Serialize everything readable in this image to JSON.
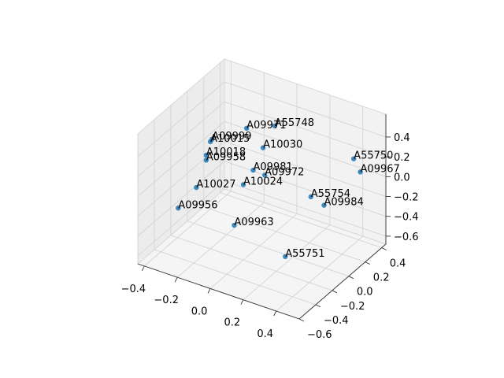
{
  "chart_data": {
    "type": "scatter3d",
    "color": "#1f77b4",
    "grid": true,
    "xlim": [
      -0.44,
      0.54
    ],
    "ylim": [
      -0.6,
      0.45
    ],
    "zlim": [
      -0.68,
      0.63
    ],
    "xticks": [
      {
        "value": -0.4,
        "label": "−0.4"
      },
      {
        "value": -0.2,
        "label": "−0.2"
      },
      {
        "value": 0,
        "label": "0.0"
      },
      {
        "value": 0.2,
        "label": "0.2"
      },
      {
        "value": 0.4,
        "label": "0.4"
      }
    ],
    "yticks": [
      {
        "value": -0.6,
        "label": "−0.6"
      },
      {
        "value": -0.4,
        "label": "−0.4"
      },
      {
        "value": -0.2,
        "label": "−0.2"
      },
      {
        "value": 0,
        "label": "0.0"
      },
      {
        "value": 0.2,
        "label": "0.2"
      },
      {
        "value": 0.4,
        "label": "0.4"
      }
    ],
    "zticks": [
      {
        "value": -0.6,
        "label": "−0.6"
      },
      {
        "value": -0.4,
        "label": "−0.4"
      },
      {
        "value": -0.2,
        "label": "−0.2"
      },
      {
        "value": 0,
        "label": "0.0"
      },
      {
        "value": 0.2,
        "label": "0.2"
      },
      {
        "value": 0.4,
        "label": "0.4"
      }
    ],
    "point_labels": [
      "A09971",
      "A55748",
      "A09999",
      "A10015",
      "A10030",
      "A10018",
      "A09958",
      "A09981",
      "A09972",
      "A10024",
      "A10027",
      "A09956",
      "A09963",
      "A55751",
      "A55754",
      "A09984",
      "A55750",
      "A09967"
    ],
    "x": [
      -0.04,
      0.02,
      -0.25,
      -0.26,
      0.06,
      -0.18,
      -0.18,
      0.0,
      0.07,
      -0.06,
      -0.24,
      -0.35,
      -0.01,
      0.3,
      0.24,
      0.32,
      0.45,
      0.49
    ],
    "y": [
      -0.08,
      0.14,
      -0.08,
      -0.08,
      -0.08,
      -0.29,
      -0.29,
      -0.08,
      -0.08,
      -0.08,
      -0.29,
      -0.29,
      -0.29,
      -0.29,
      0.14,
      0.14,
      0.24,
      0.24
    ],
    "z": [
      0.54,
      0.44,
      0.31,
      0.28,
      0.4,
      0.34,
      0.29,
      0.14,
      0.13,
      -0.04,
      -0.02,
      -0.29,
      -0.27,
      -0.41,
      -0.15,
      -0.19,
      0.28,
      0.17
    ]
  }
}
